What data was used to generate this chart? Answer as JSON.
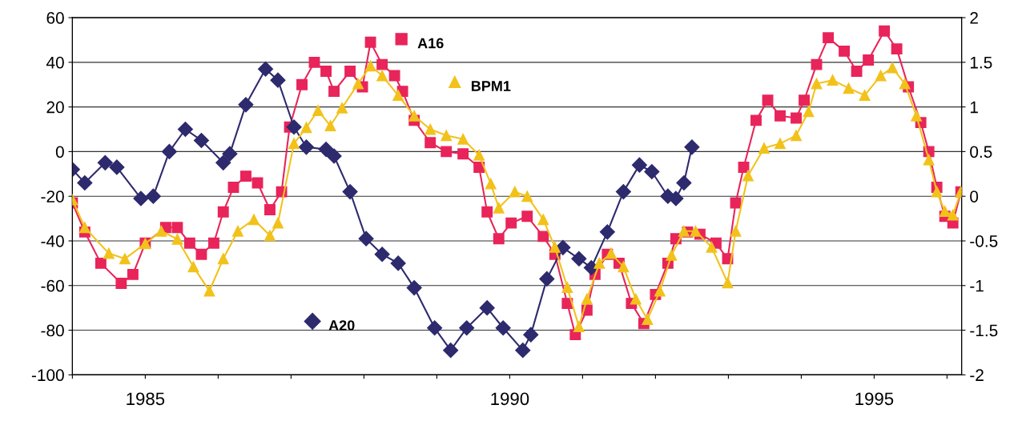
{
  "chart_data": {
    "type": "line",
    "xlim": [
      1984,
      1996.2
    ],
    "xticks": [
      {
        "value": 1984,
        "label": null
      },
      1985,
      {
        "value": 1986,
        "label": null
      },
      {
        "value": 1987,
        "label": null
      },
      {
        "value": 1988,
        "label": null
      },
      {
        "value": 1989,
        "label": null
      },
      1990,
      {
        "value": 1991,
        "label": null
      },
      {
        "value": 1992,
        "label": null
      },
      {
        "value": 1993,
        "label": null
      },
      {
        "value": 1994,
        "label": null
      },
      1995,
      {
        "value": 1996,
        "label": null
      }
    ],
    "ylim": [
      -100,
      60
    ],
    "yticks": [
      -100,
      -80,
      -60,
      -40,
      -20,
      0,
      20,
      40,
      60
    ],
    "y2lim": [
      -2,
      2
    ],
    "y2ticks": [
      -2,
      -1.5,
      -1,
      -0.5,
      0,
      0.5,
      1,
      1.5,
      2
    ],
    "grid": "y",
    "legend": "top",
    "series": [
      {
        "name": "A20",
        "color": "#2e2a6e",
        "marker": "diamond",
        "x": [
          1984.0,
          1984.17,
          1984.45,
          1984.61,
          1984.94,
          1985.11,
          1985.33,
          1985.55,
          1985.77,
          1986.07,
          1986.16,
          1986.38,
          1986.65,
          1986.82,
          1987.04,
          1987.21,
          1987.48,
          1987.59,
          1987.81,
          1988.03,
          1988.25,
          1988.47,
          1988.69,
          1988.97,
          1989.19,
          1989.41,
          1989.69,
          1989.91,
          1990.18,
          1990.29,
          1990.51,
          1990.73,
          1990.95,
          1991.12,
          1991.34,
          1991.56,
          1991.78,
          1991.95,
          1992.17,
          1992.28,
          1992.39,
          1992.5
        ],
        "values": [
          -8,
          -14,
          -5,
          -7,
          -21,
          -20,
          0,
          10,
          5,
          -5,
          -1,
          21,
          37,
          32,
          11,
          2,
          1,
          -2,
          -18,
          -39,
          -46,
          -50,
          -61,
          -79,
          -89,
          -79,
          -70,
          -79,
          -89,
          -82,
          -57,
          -43,
          -48,
          -52,
          -36,
          -18,
          -6,
          -9,
          -20,
          -21,
          -14,
          2
        ]
      },
      {
        "name": "A16",
        "color": "#e8245a",
        "marker": "square",
        "x": [
          1984.0,
          1984.17,
          1984.39,
          1984.67,
          1984.83,
          1985.0,
          1985.28,
          1985.44,
          1985.61,
          1985.77,
          1985.94,
          1986.07,
          1986.21,
          1986.38,
          1986.54,
          1986.71,
          1986.87,
          1986.98,
          1987.15,
          1987.32,
          1987.48,
          1987.59,
          1987.81,
          1987.98,
          1988.09,
          1988.25,
          1988.42,
          1988.53,
          1988.69,
          1988.91,
          1989.13,
          1989.36,
          1989.58,
          1989.69,
          1989.85,
          1990.02,
          1990.24,
          1990.46,
          1990.62,
          1990.79,
          1990.9,
          1991.06,
          1991.17,
          1991.34,
          1991.5,
          1991.67,
          1991.84,
          1992.0,
          1992.17,
          1992.28,
          1992.44,
          1992.61,
          1992.83,
          1992.99,
          1993.1,
          1993.21,
          1993.38,
          1993.54,
          1993.71,
          1993.93,
          1994.04,
          1994.21,
          1994.37,
          1994.59,
          1994.76,
          1994.92,
          1995.14,
          1995.31,
          1995.47,
          1995.64,
          1995.75,
          1995.86,
          1995.97,
          1996.08,
          1996.19
        ],
        "values": [
          -23,
          -36,
          -50,
          -59,
          -55,
          -41,
          -34,
          -34,
          -41,
          -46,
          -41,
          -27,
          -16,
          -11,
          -14,
          -26,
          -18,
          11,
          30,
          40,
          36,
          27,
          36,
          29,
          49,
          39,
          34,
          27,
          14,
          4,
          0,
          -1,
          -7,
          -27,
          -39,
          -32,
          -29,
          -38,
          -46,
          -68,
          -82,
          -71,
          -55,
          -46,
          -50,
          -68,
          -77,
          -64,
          -50,
          -39,
          -36,
          -37,
          -41,
          -48,
          -23,
          -7,
          14,
          23,
          16,
          15,
          23,
          39,
          51,
          45,
          36,
          41,
          54,
          46,
          29,
          13,
          0,
          -16,
          -29,
          -32,
          -18
        ]
      },
      {
        "name": "BPM1",
        "color": "#f2c21b",
        "marker": "triangle",
        "axis": "y2",
        "x": [
          1984.0,
          1984.17,
          1984.5,
          1984.72,
          1985.0,
          1985.22,
          1985.44,
          1985.66,
          1985.88,
          1986.07,
          1986.27,
          1986.49,
          1986.71,
          1986.82,
          1987.04,
          1987.21,
          1987.37,
          1987.54,
          1987.7,
          1987.92,
          1988.09,
          1988.25,
          1988.47,
          1988.69,
          1988.91,
          1989.13,
          1989.36,
          1989.58,
          1989.74,
          1989.85,
          1990.07,
          1990.24,
          1990.46,
          1990.62,
          1990.79,
          1990.95,
          1991.06,
          1991.23,
          1991.39,
          1991.56,
          1991.73,
          1991.89,
          1992.06,
          1992.22,
          1992.39,
          1992.55,
          1992.77,
          1992.99,
          1993.1,
          1993.27,
          1993.49,
          1993.71,
          1993.93,
          1994.1,
          1994.21,
          1994.43,
          1994.65,
          1994.87,
          1995.09,
          1995.25,
          1995.42,
          1995.58,
          1995.75,
          1995.86,
          1995.97,
          1996.08,
          1996.19
        ],
        "values": [
          -0.04,
          -0.35,
          -0.64,
          -0.7,
          -0.53,
          -0.39,
          -0.48,
          -0.79,
          -1.06,
          -0.7,
          -0.39,
          -0.26,
          -0.44,
          -0.3,
          0.59,
          0.77,
          0.96,
          0.79,
          0.99,
          1.26,
          1.46,
          1.35,
          1.13,
          0.9,
          0.75,
          0.68,
          0.64,
          0.46,
          0.14,
          -0.13,
          0.05,
          0.0,
          -0.26,
          -0.57,
          -1.02,
          -1.46,
          -1.15,
          -0.75,
          -0.64,
          -0.79,
          -1.15,
          -1.38,
          -1.06,
          -0.66,
          -0.39,
          -0.39,
          -0.57,
          -0.97,
          -0.39,
          0.23,
          0.54,
          0.59,
          0.68,
          0.95,
          1.26,
          1.3,
          1.21,
          1.13,
          1.35,
          1.44,
          1.26,
          0.9,
          0.41,
          0.05,
          -0.17,
          -0.21,
          0.05
        ]
      }
    ]
  }
}
